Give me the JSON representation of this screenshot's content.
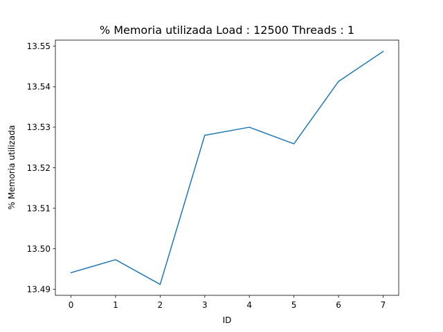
{
  "chart_data": {
    "type": "line",
    "title": "% Memoria utilizada Load : 12500 Threads : 1",
    "xlabel": "ID",
    "ylabel": "% Memoria utilizada",
    "x": [
      0,
      1,
      2,
      3,
      4,
      5,
      6,
      7
    ],
    "xticks": [
      "0",
      "1",
      "2",
      "3",
      "4",
      "5",
      "6",
      "7"
    ],
    "yticks": [
      "13.49",
      "13.50",
      "13.51",
      "13.52",
      "13.53",
      "13.54",
      "13.55"
    ],
    "series": [
      {
        "values": [
          13.4941,
          13.4973,
          13.4912,
          13.528,
          13.53,
          13.5259,
          13.5413,
          13.5487
        ],
        "color": "#1f77b4"
      }
    ],
    "xlim": [
      -0.35,
      7.35
    ],
    "ylim": [
      13.4885,
      13.5515
    ],
    "grid": false,
    "legend": "none"
  }
}
